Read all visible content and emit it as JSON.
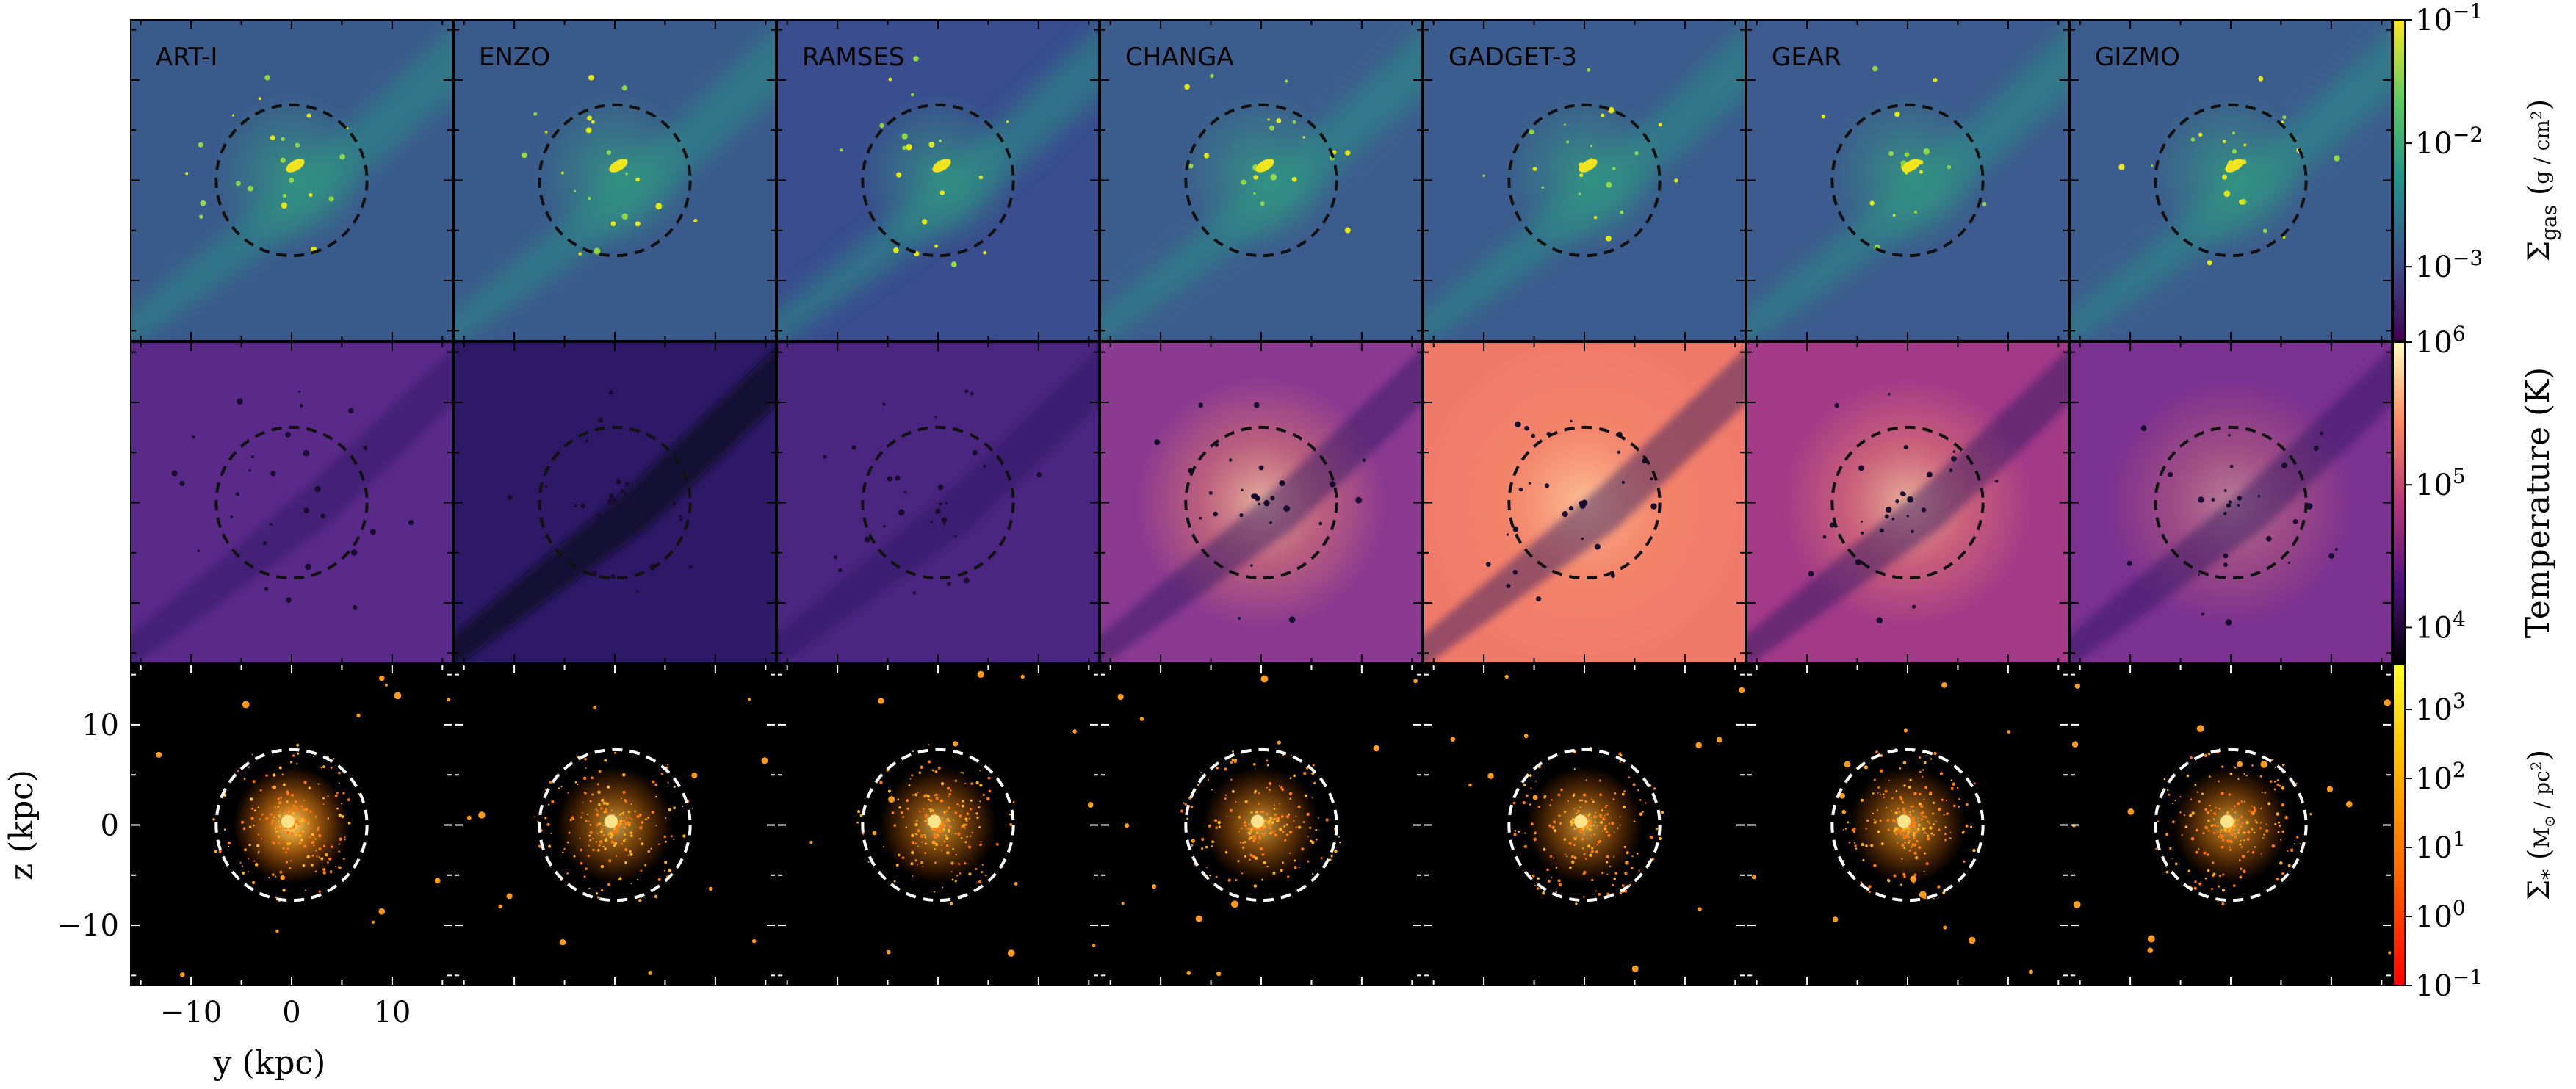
{
  "chart_data": {
    "type": "heatmap",
    "codes": [
      "ART-I",
      "ENZO",
      "RAMSES",
      "CHANGA",
      "GADGET-3",
      "GEAR",
      "GIZMO"
    ],
    "rows": [
      {
        "quantity": "gas surface density",
        "colorbar": {
          "colormap": "viridis",
          "scale": "log",
          "ticks": [
            {
              "value": 0.1,
              "base": "10",
              "exp": "−1"
            },
            {
              "value": 0.01,
              "base": "10",
              "exp": "−2"
            },
            {
              "value": 0.001,
              "base": "10",
              "exp": "−3"
            }
          ],
          "label_main": "Σ",
          "label_sub": "gas",
          "label_num": "g",
          "label_den_base": "cm",
          "label_den_exp": "2"
        },
        "circle_color": "#111111"
      },
      {
        "quantity": "temperature",
        "colorbar": {
          "colormap": "magma",
          "scale": "log",
          "ticks": [
            {
              "value": 1000000,
              "base": "10",
              "exp": "6"
            },
            {
              "value": 100000,
              "base": "10",
              "exp": "5"
            },
            {
              "value": 10000,
              "base": "10",
              "exp": "4"
            }
          ],
          "label": "Temperature  (K)"
        },
        "circle_color": "#111111"
      },
      {
        "quantity": "stellar surface density",
        "colorbar": {
          "colormap": "hot",
          "scale": "log",
          "ticks": [
            {
              "value": 1000,
              "base": "10",
              "exp": "3"
            },
            {
              "value": 100,
              "base": "10",
              "exp": "2"
            },
            {
              "value": 10,
              "base": "10",
              "exp": "1"
            },
            {
              "value": 1,
              "base": "10",
              "exp": "0"
            },
            {
              "value": 0.1,
              "base": "10",
              "exp": "−1"
            }
          ],
          "label_main": "Σ",
          "label_sub": "*",
          "label_num": "M",
          "label_num_sub": "⊙",
          "label_den_base": "pc",
          "label_den_exp": "2"
        },
        "circle_color": "#ffffff"
      }
    ],
    "xaxis": {
      "label": "y  (kpc)",
      "ticks": [
        -10,
        0,
        10
      ],
      "tick_labels": [
        "−10",
        "0",
        "10"
      ],
      "range": [
        -16,
        16
      ]
    },
    "yaxis": {
      "label": "z  (kpc)",
      "ticks": [
        10,
        0,
        -10
      ],
      "tick_labels": [
        "10",
        "0",
        "−10"
      ],
      "range": [
        -16,
        16
      ]
    },
    "circle_radius_kpc": 7.5,
    "background_colors": {
      "gas": [
        "#3b5a8c",
        "#3b5a8c",
        "#3a4d8e",
        "#3d5c8e",
        "#3c5b8e",
        "#3d5b8e",
        "#3d5c8e"
      ],
      "temperature": [
        "#5a2a8a",
        "#2c1a66",
        "#4a2680",
        "#8a3a90",
        "#f07a6a",
        "#a23a88",
        "#7a3190"
      ]
    }
  }
}
